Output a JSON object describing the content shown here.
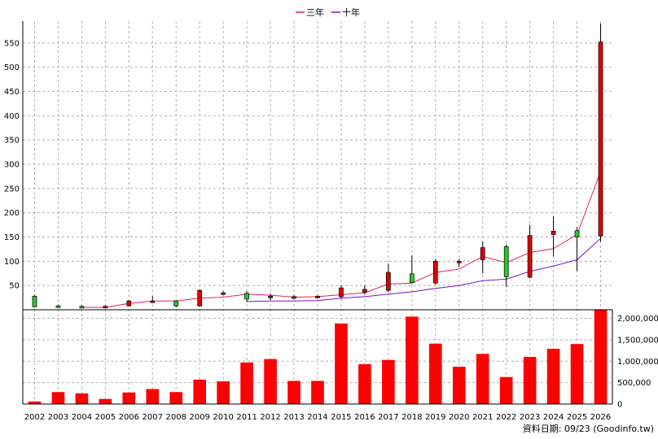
{
  "chart_data": {
    "type": "candlestick+bar",
    "legend": [
      {
        "name": "三年",
        "color": "#e0206a"
      },
      {
        "name": "十年",
        "color": "#7a10d0"
      }
    ],
    "categories": [
      "2002",
      "2003",
      "2004",
      "2005",
      "2006",
      "2007",
      "2008",
      "2009",
      "2010",
      "2011",
      "2012",
      "2013",
      "2014",
      "2015",
      "2016",
      "2017",
      "2018",
      "2019",
      "2020",
      "2021",
      "2022",
      "2023",
      "2024",
      "2025",
      "2026"
    ],
    "price_axis": {
      "ticks": [
        50,
        100,
        150,
        200,
        250,
        300,
        350,
        400,
        450,
        500,
        550
      ],
      "ylim": [
        0,
        595
      ]
    },
    "volume_axis": {
      "ticks": [
        0,
        500000,
        1000000,
        1500000,
        2000000
      ],
      "tick_labels": [
        "0",
        "500,000",
        "1,000,000",
        "1,500,000",
        "2,000,000"
      ],
      "ylim": [
        0,
        2200000
      ]
    },
    "candles": [
      {
        "o": 28,
        "h": 30,
        "l": 6,
        "c": 6,
        "up": false
      },
      {
        "o": 8,
        "h": 10,
        "l": 5,
        "c": 8,
        "up": false
      },
      {
        "o": 7,
        "h": 9,
        "l": 5,
        "c": 7,
        "up": false
      },
      {
        "o": 6,
        "h": 9,
        "l": 5,
        "c": 7,
        "up": true
      },
      {
        "o": 8,
        "h": 20,
        "l": 7,
        "c": 18,
        "up": true
      },
      {
        "o": 18,
        "h": 28,
        "l": 14,
        "c": 18,
        "up": true
      },
      {
        "o": 18,
        "h": 20,
        "l": 5,
        "c": 8,
        "up": false
      },
      {
        "o": 8,
        "h": 42,
        "l": 6,
        "c": 40,
        "up": true
      },
      {
        "o": 33,
        "h": 38,
        "l": 30,
        "c": 35,
        "up": true
      },
      {
        "o": 34,
        "h": 38,
        "l": 16,
        "c": 22,
        "up": false
      },
      {
        "o": 27,
        "h": 33,
        "l": 20,
        "c": 28,
        "up": true
      },
      {
        "o": 26,
        "h": 30,
        "l": 22,
        "c": 27,
        "up": true
      },
      {
        "o": 27,
        "h": 30,
        "l": 23,
        "c": 28,
        "up": true
      },
      {
        "o": 27,
        "h": 50,
        "l": 22,
        "c": 45,
        "up": true
      },
      {
        "o": 36,
        "h": 50,
        "l": 32,
        "c": 42,
        "up": true
      },
      {
        "o": 40,
        "h": 95,
        "l": 36,
        "c": 77,
        "up": true
      },
      {
        "o": 74,
        "h": 112,
        "l": 55,
        "c": 56,
        "up": false
      },
      {
        "o": 55,
        "h": 105,
        "l": 52,
        "c": 100,
        "up": true
      },
      {
        "o": 98,
        "h": 105,
        "l": 88,
        "c": 100,
        "up": true
      },
      {
        "o": 103,
        "h": 140,
        "l": 75,
        "c": 128,
        "up": true
      },
      {
        "o": 130,
        "h": 135,
        "l": 47,
        "c": 68,
        "up": false
      },
      {
        "o": 67,
        "h": 175,
        "l": 65,
        "c": 153,
        "up": true
      },
      {
        "o": 155,
        "h": 193,
        "l": 110,
        "c": 162,
        "up": true
      },
      {
        "o": 163,
        "h": 170,
        "l": 80,
        "c": 150,
        "up": false
      },
      {
        "o": 152,
        "h": 590,
        "l": 140,
        "c": 552,
        "up": true
      }
    ],
    "ma_3yr": [
      null,
      null,
      5,
      5,
      13,
      18,
      18,
      24,
      26,
      32,
      30,
      26,
      27,
      31,
      35,
      53,
      55,
      77,
      84,
      110,
      97,
      118,
      126,
      155,
      285
    ],
    "ma_10yr": [
      null,
      null,
      null,
      null,
      null,
      null,
      null,
      null,
      null,
      17,
      18,
      18,
      19,
      24,
      27,
      32,
      37,
      44,
      50,
      60,
      63,
      79,
      90,
      103,
      147
    ],
    "volume": [
      60000,
      280000,
      250000,
      120000,
      270000,
      350000,
      280000,
      570000,
      530000,
      970000,
      1050000,
      540000,
      540000,
      1880000,
      930000,
      1030000,
      2040000,
      1410000,
      870000,
      1170000,
      630000,
      1100000,
      1290000,
      1400000,
      2200000
    ]
  },
  "source_note": "資料日期: 09/23 (Goodinfo.tw)"
}
